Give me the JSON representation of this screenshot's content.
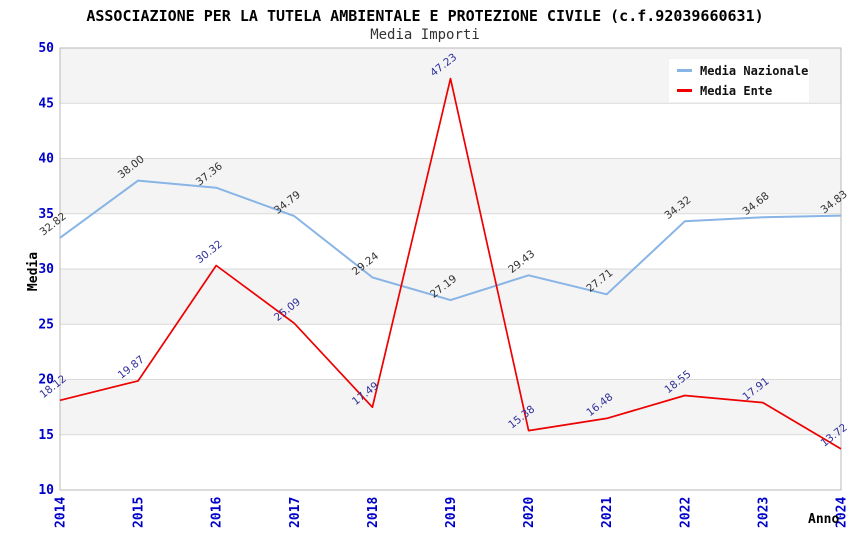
{
  "header": {
    "title": "ASSOCIAZIONE PER LA TUTELA AMBIENTALE E PROTEZIONE CIVILE (c.f.92039660631)",
    "subtitle": "Media Importi"
  },
  "chart_data": {
    "type": "line",
    "title": "ASSOCIAZIONE PER LA TUTELA AMBIENTALE E PROTEZIONE CIVILE (c.f.92039660631)",
    "subtitle": "Media Importi",
    "xlabel": "Anno",
    "ylabel": "Media",
    "categories": [
      "2014",
      "2015",
      "2016",
      "2017",
      "2018",
      "2019",
      "2020",
      "2021",
      "2022",
      "2023",
      "2024"
    ],
    "series": [
      {
        "name": "Media Nazionale",
        "color": "#88b4e6",
        "label_color": "#333333",
        "values": [
          32.82,
          38.0,
          37.36,
          34.79,
          29.24,
          27.19,
          29.43,
          27.71,
          34.32,
          34.68,
          34.83
        ]
      },
      {
        "name": "Media Ente",
        "color": "#ee0000",
        "label_color": "#30309a",
        "values": [
          18.12,
          19.87,
          30.32,
          25.09,
          17.49,
          47.23,
          15.38,
          16.48,
          18.55,
          17.91,
          13.72
        ]
      }
    ],
    "ylim": [
      10,
      50
    ],
    "ytick_step": 5,
    "yticks": [
      10,
      15,
      20,
      25,
      30,
      35,
      40,
      45,
      50
    ],
    "grid": true,
    "legend_position": "top-right",
    "colors": {
      "tick_label": "#0000cc",
      "band_gray": "#f4f4f4",
      "gridline": "#d9d9d9",
      "frame": "#b8b8b8"
    }
  }
}
